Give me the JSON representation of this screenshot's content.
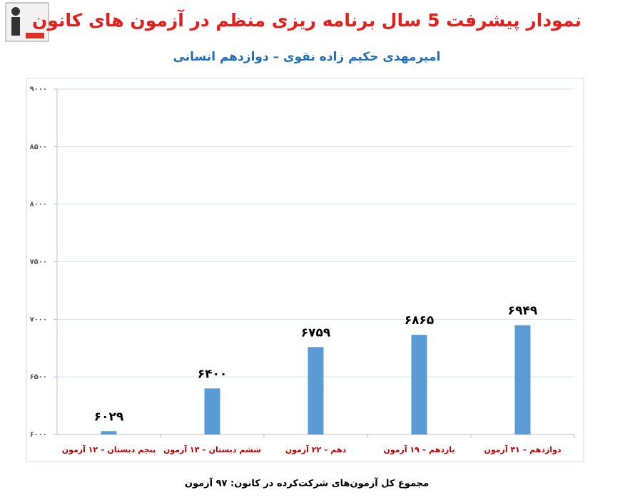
{
  "chart_data": {
    "type": "bar",
    "title": "نمودار پیشرفت 5 سال برنامه ریزی منظم در آزمون های کانون",
    "subtitle": "امیرمهدی حکیم زاده نقوی – دوازدهم انسانی",
    "categories": [
      "پنجم دبستان – ۱۲ آزمون",
      "ششم دبستان – ۱۳ آزمون",
      "دهم – ۲۲ آزمون",
      "یازدهم – ۱۹ آزمون",
      "دوازدهم – ۳۱ آزمون"
    ],
    "values": [
      6029,
      6400,
      6759,
      6865,
      6949
    ],
    "value_labels": [
      "۶۰۲۹",
      "۶۴۰۰",
      "۶۷۵۹",
      "۶۸۶۵",
      "۶۹۴۹"
    ],
    "color": "#5b9bd5",
    "ylim": [
      6000,
      9000
    ],
    "yticks": [
      {
        "value": 6000,
        "label": "۶۰۰۰"
      },
      {
        "value": 6500,
        "label": "۶۵۰۰"
      },
      {
        "value": 7000,
        "label": "۷۰۰۰"
      },
      {
        "value": 7500,
        "label": "۷۵۰۰"
      },
      {
        "value": 8000,
        "label": "۸۰۰۰"
      },
      {
        "value": 8500,
        "label": "۸۵۰۰"
      },
      {
        "value": 9000,
        "label": "۹۰۰۰"
      }
    ],
    "grid": true,
    "footnote": "مجموع کل آزمون‌های شرکت‌کرده در کانون: ۹۷ آزمون"
  }
}
